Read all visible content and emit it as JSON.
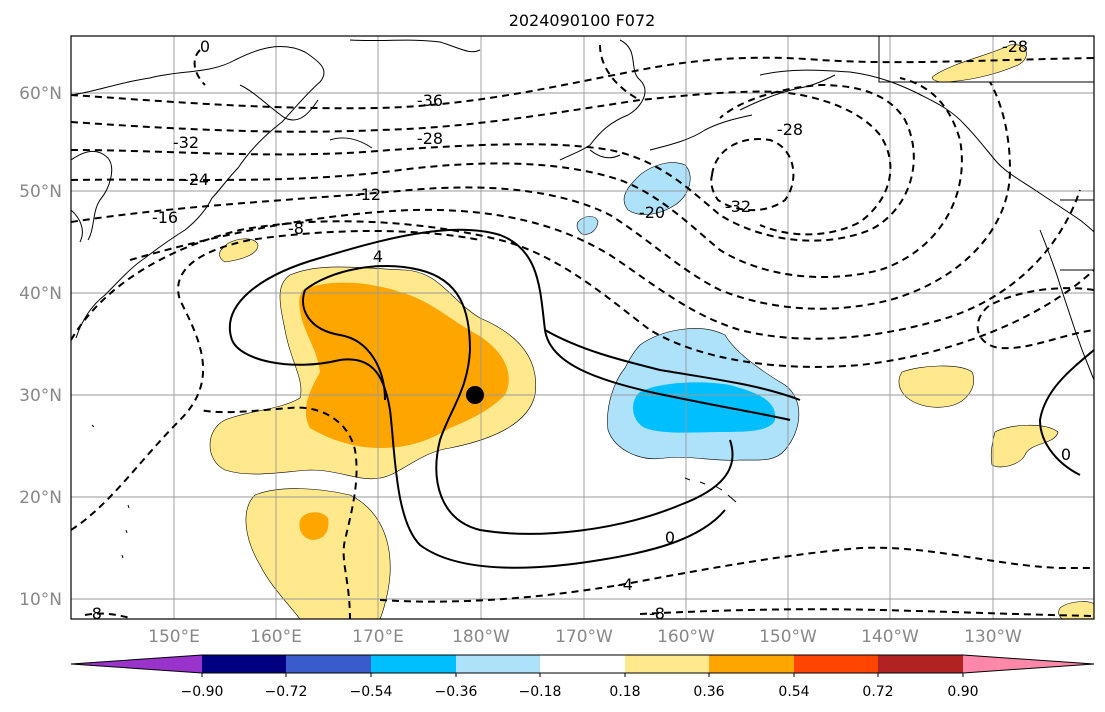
{
  "title": "2024090100 F072",
  "lat_labels": [
    "60°N",
    "50°N",
    "40°N",
    "30°N",
    "20°N",
    "10°N"
  ],
  "lon_labels": [
    "150°E",
    "160°E",
    "170°E",
    "180°W",
    "170°W",
    "160°W",
    "150°W",
    "140°W",
    "130°W"
  ],
  "colorbar": {
    "ticks": [
      "−0.90",
      "−0.72",
      "−0.54",
      "−0.36",
      "−0.18",
      "0.18",
      "0.36",
      "0.54",
      "0.72",
      "0.90"
    ],
    "colors": [
      "#9933cc",
      "#000080",
      "#3a5bcc",
      "#00bfff",
      "#aee1fa",
      "#ffffff",
      "#ffe98c",
      "#ffa500",
      "#ff4500",
      "#b22222",
      "#ff88aa"
    ]
  },
  "contour_labels": [
    "0",
    "-36",
    "-32",
    "-28",
    "-24",
    "-16",
    "-12",
    "-8",
    "4",
    "-28",
    "-32",
    "-20",
    "-28",
    "0",
    "-4",
    "-8",
    "-8",
    "0"
  ],
  "marker": {
    "lat": 30,
    "lon": 180
  }
}
